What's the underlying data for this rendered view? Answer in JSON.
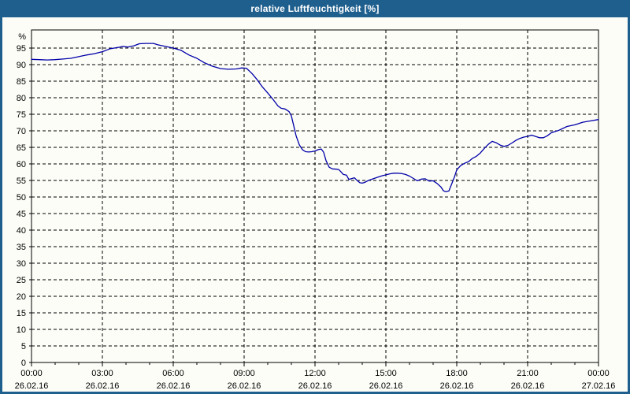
{
  "window": {
    "title": "relative Luftfeuchtigkeit [%]"
  },
  "colors": {
    "titlebar_bg": "#1e5f8e",
    "titlebar_text": "#ffffff",
    "window_border": "#1e5f8e",
    "content_bg": "#fdfdf8",
    "plot_bg": "#fdfdf8",
    "line": "#0000a8",
    "grid": "#000000",
    "axis": "#000000",
    "label_text": "#000000"
  },
  "chart_data": {
    "type": "line",
    "title": "relative Luftfeuchtigkeit [%]",
    "xlabel": "",
    "ylabel": "%",
    "ylim": [
      0,
      100.5
    ],
    "x_range_minutes": [
      0,
      1440
    ],
    "grid": "dashed",
    "legend": "none",
    "y_ticks": [
      95,
      90,
      85,
      80,
      75,
      70,
      65,
      60,
      55,
      50,
      45,
      40,
      35,
      30,
      25,
      20,
      15,
      10,
      5,
      0
    ],
    "x_ticks": [
      {
        "minutes": 0,
        "time": "00:00",
        "date": "26.02.16"
      },
      {
        "minutes": 180,
        "time": "03:00",
        "date": "26.02.16"
      },
      {
        "minutes": 360,
        "time": "06:00",
        "date": "26.02.16"
      },
      {
        "minutes": 540,
        "time": "09:00",
        "date": "26.02.16"
      },
      {
        "minutes": 720,
        "time": "12:00",
        "date": "26.02.16"
      },
      {
        "minutes": 900,
        "time": "15:00",
        "date": "26.02.16"
      },
      {
        "minutes": 1080,
        "time": "18:00",
        "date": "26.02.16"
      },
      {
        "minutes": 1260,
        "time": "21:00",
        "date": "26.02.16"
      },
      {
        "minutes": 1440,
        "time": "00:00",
        "date": "27.02.16"
      }
    ],
    "x_minor_step_minutes": 60,
    "series": [
      {
        "name": "relative Luftfeuchtigkeit",
        "unit": "%",
        "points": [
          [
            0,
            91.6
          ],
          [
            20,
            91.5
          ],
          [
            40,
            91.4
          ],
          [
            60,
            91.5
          ],
          [
            80,
            91.7
          ],
          [
            100,
            91.9
          ],
          [
            120,
            92.4
          ],
          [
            140,
            92.9
          ],
          [
            160,
            93.3
          ],
          [
            180,
            93.9
          ],
          [
            200,
            94.8
          ],
          [
            210,
            95.0
          ],
          [
            220,
            95.2
          ],
          [
            232,
            95.5
          ],
          [
            244,
            95.3
          ],
          [
            260,
            95.7
          ],
          [
            274,
            96.3
          ],
          [
            290,
            96.4
          ],
          [
            310,
            96.4
          ],
          [
            320,
            96.0
          ],
          [
            340,
            95.5
          ],
          [
            360,
            95.0
          ],
          [
            380,
            94.3
          ],
          [
            400,
            92.9
          ],
          [
            420,
            91.9
          ],
          [
            440,
            90.5
          ],
          [
            460,
            89.5
          ],
          [
            480,
            88.8
          ],
          [
            500,
            88.6
          ],
          [
            520,
            88.7
          ],
          [
            534,
            89.0
          ],
          [
            546,
            88.9
          ],
          [
            560,
            87.3
          ],
          [
            574,
            85.3
          ],
          [
            586,
            83.3
          ],
          [
            600,
            81.4
          ],
          [
            614,
            79.4
          ],
          [
            626,
            77.5
          ],
          [
            634,
            76.8
          ],
          [
            644,
            76.6
          ],
          [
            654,
            75.8
          ],
          [
            660,
            74.5
          ],
          [
            666,
            71.5
          ],
          [
            672,
            68.5
          ],
          [
            680,
            65.8
          ],
          [
            688,
            64.3
          ],
          [
            696,
            63.7
          ],
          [
            704,
            63.6
          ],
          [
            712,
            63.7
          ],
          [
            720,
            63.9
          ],
          [
            728,
            64.3
          ],
          [
            736,
            64.5
          ],
          [
            742,
            63.5
          ],
          [
            748,
            61.0
          ],
          [
            756,
            59.0
          ],
          [
            764,
            58.5
          ],
          [
            774,
            58.4
          ],
          [
            780,
            58.3
          ],
          [
            786,
            57.6
          ],
          [
            792,
            56.8
          ],
          [
            800,
            56.6
          ],
          [
            806,
            55.3
          ],
          [
            814,
            55.6
          ],
          [
            820,
            55.8
          ],
          [
            826,
            55.1
          ],
          [
            834,
            54.3
          ],
          [
            840,
            54.2
          ],
          [
            846,
            54.4
          ],
          [
            854,
            54.9
          ],
          [
            860,
            55.2
          ],
          [
            870,
            55.6
          ],
          [
            880,
            56.0
          ],
          [
            890,
            56.4
          ],
          [
            900,
            56.7
          ],
          [
            910,
            57.0
          ],
          [
            920,
            57.2
          ],
          [
            930,
            57.2
          ],
          [
            940,
            57.1
          ],
          [
            950,
            56.8
          ],
          [
            960,
            56.3
          ],
          [
            970,
            55.6
          ],
          [
            980,
            54.9
          ],
          [
            990,
            55.4
          ],
          [
            1000,
            55.5
          ],
          [
            1010,
            54.8
          ],
          [
            1020,
            54.9
          ],
          [
            1030,
            54.1
          ],
          [
            1040,
            53.0
          ],
          [
            1046,
            51.9
          ],
          [
            1052,
            51.6
          ],
          [
            1060,
            51.8
          ],
          [
            1066,
            53.6
          ],
          [
            1074,
            56.0
          ],
          [
            1080,
            58.2
          ],
          [
            1090,
            59.5
          ],
          [
            1100,
            60.2
          ],
          [
            1110,
            60.7
          ],
          [
            1120,
            61.7
          ],
          [
            1130,
            62.3
          ],
          [
            1140,
            63.3
          ],
          [
            1150,
            64.7
          ],
          [
            1160,
            65.9
          ],
          [
            1170,
            66.8
          ],
          [
            1180,
            66.4
          ],
          [
            1190,
            65.7
          ],
          [
            1200,
            65.3
          ],
          [
            1210,
            65.6
          ],
          [
            1220,
            66.3
          ],
          [
            1230,
            67.1
          ],
          [
            1240,
            67.7
          ],
          [
            1250,
            68.1
          ],
          [
            1260,
            68.3
          ],
          [
            1270,
            68.7
          ],
          [
            1280,
            68.3
          ],
          [
            1290,
            67.9
          ],
          [
            1300,
            67.9
          ],
          [
            1310,
            68.5
          ],
          [
            1320,
            69.4
          ],
          [
            1340,
            70.2
          ],
          [
            1360,
            71.3
          ],
          [
            1380,
            71.8
          ],
          [
            1400,
            72.6
          ],
          [
            1420,
            73.0
          ],
          [
            1440,
            73.4
          ]
        ]
      }
    ]
  }
}
